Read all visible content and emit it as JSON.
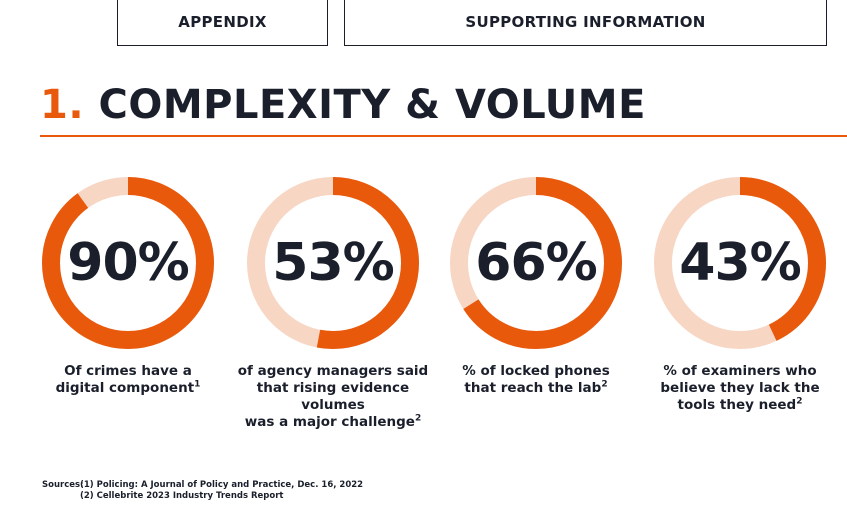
{
  "header": {
    "tab_appendix": "APPENDIX",
    "tab_supporting": "SUPPORTING INFORMATION"
  },
  "section": {
    "number": "1.",
    "title": "COMPLEXITY & VOLUME"
  },
  "colors": {
    "accent": "#e8590c",
    "ring_track": "#f8d6c4",
    "text_dark": "#1a1f2b"
  },
  "stats": [
    {
      "value": 90,
      "label": "90%",
      "caption_lines": [
        "Of crimes have a",
        "digital component"
      ],
      "footnote": "1"
    },
    {
      "value": 53,
      "label": "53%",
      "caption_lines": [
        "of agency managers said",
        "that rising evidence volumes",
        "was a major challenge"
      ],
      "footnote": "2"
    },
    {
      "value": 66,
      "label": "66%",
      "caption_lines": [
        "% of locked phones",
        "that reach the lab"
      ],
      "footnote": "2"
    },
    {
      "value": 43,
      "label": "43%",
      "caption_lines": [
        "% of examiners who",
        "believe they lack the",
        "tools they need"
      ],
      "footnote": "2"
    }
  ],
  "sources": {
    "label": "Sources:",
    "items": [
      "(1) Policing: A Journal of Policy and Practice, Dec. 16, 2022",
      "(2) Cellebrite 2023 Industry Trends Report"
    ]
  }
}
